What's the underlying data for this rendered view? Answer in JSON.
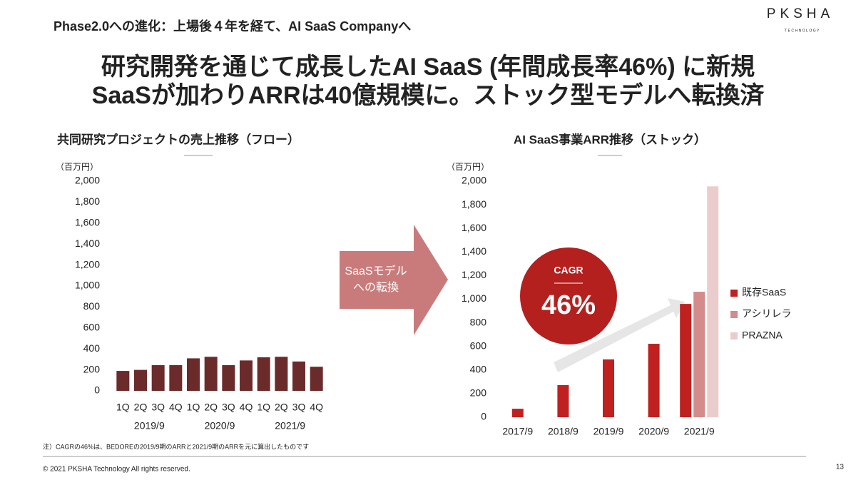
{
  "header": {
    "subtitle": "Phase2.0への進化：上場後４年を経て、AI SaaS Companyへ",
    "logo": "PKSHA",
    "logo_sub": "TECHNOLOGY",
    "title_lines": [
      "研究開発を通じて成長したAI SaaS (年間成長率46%) に新規",
      "SaaSが加わりARRは40億規模に。ストック型モデルへ転換済"
    ]
  },
  "arrow_label": [
    "SaaSモデル",
    "への転換"
  ],
  "note": "注）CAGRの46%は、BEDOREの2019/9期のARRと2021/9期のARRを元に算出したものです",
  "footer": {
    "copyright": "© 2021 PKSHA Technology All rights reserved.",
    "page": "13"
  },
  "chart_data": [
    {
      "type": "bar",
      "title": "共同研究プロジェクトの売上推移（フロー）",
      "unit": "（百万円）",
      "categories": [
        "1Q",
        "2Q",
        "3Q",
        "4Q",
        "1Q",
        "2Q",
        "3Q",
        "4Q",
        "1Q",
        "2Q",
        "3Q",
        "4Q"
      ],
      "category_groups": [
        "2019/9",
        "2020/9",
        "2021/9"
      ],
      "values": [
        190,
        200,
        245,
        245,
        310,
        325,
        245,
        290,
        320,
        325,
        280,
        230
      ],
      "color": "#6b2b2b",
      "ylim": [
        0,
        2000
      ],
      "yticks": [
        0,
        200,
        400,
        600,
        800,
        {
          "value": 1000,
          "label": "1,000"
        },
        {
          "value": 1200,
          "label": "1,200"
        },
        {
          "value": 1400,
          "label": "1,400"
        },
        {
          "value": 1600,
          "label": "1,600"
        },
        {
          "value": 1800,
          "label": "1,800"
        },
        {
          "value": 2000,
          "label": "2,000"
        }
      ],
      "grid": false
    },
    {
      "type": "bar",
      "title": "AI SaaS事業ARR推移（ストック）",
      "unit": "（百万円）",
      "categories": [
        "2017/9",
        "2018/9",
        "2019/9",
        "2020/9",
        "2021/9"
      ],
      "series": [
        {
          "name": "既存SaaS",
          "color": "#c0201f",
          "values": [
            72,
            272,
            490,
            622,
            960
          ]
        },
        {
          "name": "アシリレラ",
          "color": "#d48b8b",
          "values": [
            null,
            null,
            null,
            null,
            1063
          ]
        },
        {
          "name": "PRAZNA",
          "color": "#ebcccc",
          "values": [
            null,
            null,
            null,
            null,
            1956
          ]
        }
      ],
      "ylim": [
        0,
        2000
      ],
      "yticks": [
        0,
        200,
        400,
        600,
        800,
        {
          "value": 1000,
          "label": "1,000"
        },
        {
          "value": 1200,
          "label": "1,200"
        },
        {
          "value": 1400,
          "label": "1,400"
        },
        {
          "value": 1600,
          "label": "1,600"
        },
        {
          "value": 1800,
          "label": "1,800"
        },
        {
          "value": 2000,
          "label": "2,000"
        }
      ],
      "grid": false,
      "legend": "right",
      "annotations": {
        "cagr_label": "CAGR",
        "cagr_value": "46%"
      }
    }
  ]
}
